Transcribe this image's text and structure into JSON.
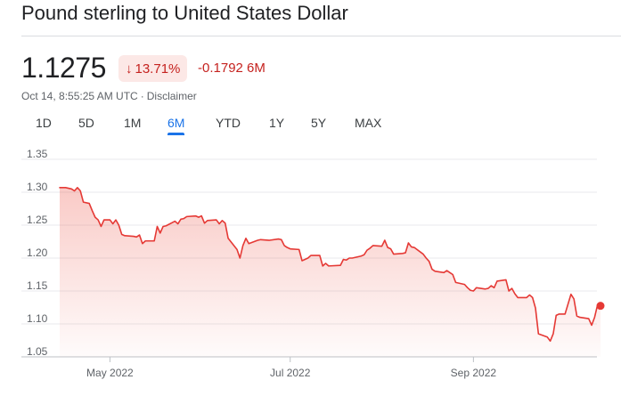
{
  "header": {
    "title": "Pound sterling to United States Dollar"
  },
  "quote": {
    "price": "1.1275",
    "percent_change": "13.71%",
    "percent_direction_icon": "arrow-down-icon",
    "abs_change": "-0.1792 6M",
    "timestamp": "Oct 14, 8:55:25 AM UTC",
    "separator": "·",
    "disclaimer": "Disclaimer"
  },
  "tabs": [
    {
      "label": "1D",
      "active": false
    },
    {
      "label": "5D",
      "active": false
    },
    {
      "label": "1M",
      "active": false
    },
    {
      "label": "6M",
      "active": true
    },
    {
      "label": "YTD",
      "active": false
    },
    {
      "label": "1Y",
      "active": false
    },
    {
      "label": "5Y",
      "active": false
    },
    {
      "label": "MAX",
      "active": false
    }
  ],
  "colors": {
    "line": "#e53935",
    "fill": "#ea4335",
    "accent": "#1a73e8",
    "negative": "#c5221f",
    "gridline": "#e8eaed"
  },
  "chart_data": {
    "type": "area",
    "ylim": [
      1.05,
      1.35
    ],
    "yticks": [
      "1.35",
      "1.30",
      "1.25",
      "1.20",
      "1.15",
      "1.10",
      "1.05"
    ],
    "xticks": [
      {
        "label": "May 2022",
        "date": "2022-05-01"
      },
      {
        "label": "Jul 2022",
        "date": "2022-07-01"
      },
      {
        "label": "Sep 2022",
        "date": "2022-09-01"
      }
    ],
    "grid": true,
    "series": [
      {
        "points": [
          [
            "2022-04-14",
            1.307
          ],
          [
            "2022-04-16",
            1.307
          ],
          [
            "2022-04-18",
            1.305
          ],
          [
            "2022-04-19",
            1.302
          ],
          [
            "2022-04-20",
            1.307
          ],
          [
            "2022-04-21",
            1.302
          ],
          [
            "2022-04-22",
            1.285
          ],
          [
            "2022-04-24",
            1.283
          ],
          [
            "2022-04-25",
            1.272
          ],
          [
            "2022-04-26",
            1.262
          ],
          [
            "2022-04-27",
            1.258
          ],
          [
            "2022-04-28",
            1.248
          ],
          [
            "2022-04-29",
            1.258
          ],
          [
            "2022-05-01",
            1.258
          ],
          [
            "2022-05-02",
            1.252
          ],
          [
            "2022-05-03",
            1.258
          ],
          [
            "2022-05-04",
            1.25
          ],
          [
            "2022-05-05",
            1.236
          ],
          [
            "2022-05-06",
            1.234
          ],
          [
            "2022-05-09",
            1.233
          ],
          [
            "2022-05-10",
            1.232
          ],
          [
            "2022-05-11",
            1.235
          ],
          [
            "2022-05-12",
            1.222
          ],
          [
            "2022-05-13",
            1.226
          ],
          [
            "2022-05-16",
            1.226
          ],
          [
            "2022-05-17",
            1.248
          ],
          [
            "2022-05-18",
            1.238
          ],
          [
            "2022-05-19",
            1.248
          ],
          [
            "2022-05-20",
            1.249
          ],
          [
            "2022-05-23",
            1.256
          ],
          [
            "2022-05-24",
            1.252
          ],
          [
            "2022-05-25",
            1.259
          ],
          [
            "2022-05-26",
            1.26
          ],
          [
            "2022-05-27",
            1.263
          ],
          [
            "2022-05-30",
            1.264
          ],
          [
            "2022-05-31",
            1.262
          ],
          [
            "2022-06-01",
            1.264
          ],
          [
            "2022-06-02",
            1.253
          ],
          [
            "2022-06-03",
            1.257
          ],
          [
            "2022-06-06",
            1.258
          ],
          [
            "2022-06-07",
            1.252
          ],
          [
            "2022-06-08",
            1.257
          ],
          [
            "2022-06-09",
            1.253
          ],
          [
            "2022-06-10",
            1.23
          ],
          [
            "2022-06-13",
            1.213
          ],
          [
            "2022-06-14",
            1.2
          ],
          [
            "2022-06-15",
            1.219
          ],
          [
            "2022-06-16",
            1.23
          ],
          [
            "2022-06-17",
            1.222
          ],
          [
            "2022-06-20",
            1.227
          ],
          [
            "2022-06-21",
            1.228
          ],
          [
            "2022-06-24",
            1.227
          ],
          [
            "2022-06-27",
            1.229
          ],
          [
            "2022-06-28",
            1.228
          ],
          [
            "2022-06-29",
            1.219
          ],
          [
            "2022-06-30",
            1.216
          ],
          [
            "2022-07-01",
            1.214
          ],
          [
            "2022-07-04",
            1.213
          ],
          [
            "2022-07-05",
            1.196
          ],
          [
            "2022-07-07",
            1.2
          ],
          [
            "2022-07-08",
            1.204
          ],
          [
            "2022-07-11",
            1.204
          ],
          [
            "2022-07-12",
            1.188
          ],
          [
            "2022-07-13",
            1.192
          ],
          [
            "2022-07-14",
            1.188
          ],
          [
            "2022-07-18",
            1.189
          ],
          [
            "2022-07-19",
            1.198
          ],
          [
            "2022-07-20",
            1.197
          ],
          [
            "2022-07-21",
            1.2
          ],
          [
            "2022-07-22",
            1.2
          ],
          [
            "2022-07-25",
            1.203
          ],
          [
            "2022-07-26",
            1.205
          ],
          [
            "2022-07-27",
            1.212
          ],
          [
            "2022-07-28",
            1.215
          ],
          [
            "2022-07-29",
            1.219
          ],
          [
            "2022-08-01",
            1.218
          ],
          [
            "2022-08-02",
            1.227
          ],
          [
            "2022-08-03",
            1.216
          ],
          [
            "2022-08-04",
            1.214
          ],
          [
            "2022-08-05",
            1.206
          ],
          [
            "2022-08-08",
            1.207
          ],
          [
            "2022-08-09",
            1.208
          ],
          [
            "2022-08-10",
            1.223
          ],
          [
            "2022-08-11",
            1.217
          ],
          [
            "2022-08-12",
            1.216
          ],
          [
            "2022-08-15",
            1.206
          ],
          [
            "2022-08-16",
            1.2
          ],
          [
            "2022-08-17",
            1.195
          ],
          [
            "2022-08-18",
            1.183
          ],
          [
            "2022-08-19",
            1.18
          ],
          [
            "2022-08-22",
            1.178
          ],
          [
            "2022-08-23",
            1.181
          ],
          [
            "2022-08-24",
            1.178
          ],
          [
            "2022-08-25",
            1.175
          ],
          [
            "2022-08-26",
            1.163
          ],
          [
            "2022-08-29",
            1.16
          ],
          [
            "2022-08-30",
            1.155
          ],
          [
            "2022-08-31",
            1.151
          ],
          [
            "2022-09-01",
            1.15
          ],
          [
            "2022-09-02",
            1.155
          ],
          [
            "2022-09-05",
            1.153
          ],
          [
            "2022-09-06",
            1.154
          ],
          [
            "2022-09-07",
            1.158
          ],
          [
            "2022-09-08",
            1.155
          ],
          [
            "2022-09-09",
            1.165
          ],
          [
            "2022-09-12",
            1.167
          ],
          [
            "2022-09-13",
            1.15
          ],
          [
            "2022-09-14",
            1.154
          ],
          [
            "2022-09-15",
            1.146
          ],
          [
            "2022-09-16",
            1.14
          ],
          [
            "2022-09-19",
            1.14
          ],
          [
            "2022-09-20",
            1.144
          ],
          [
            "2022-09-21",
            1.14
          ],
          [
            "2022-09-22",
            1.124
          ],
          [
            "2022-09-23",
            1.085
          ],
          [
            "2022-09-26",
            1.08
          ],
          [
            "2022-09-27",
            1.074
          ],
          [
            "2022-09-28",
            1.085
          ],
          [
            "2022-09-29",
            1.113
          ],
          [
            "2022-09-30",
            1.115
          ],
          [
            "2022-10-02",
            1.115
          ],
          [
            "2022-10-03",
            1.13
          ],
          [
            "2022-10-04",
            1.145
          ],
          [
            "2022-10-05",
            1.138
          ],
          [
            "2022-10-06",
            1.112
          ],
          [
            "2022-10-07",
            1.11
          ],
          [
            "2022-10-10",
            1.108
          ],
          [
            "2022-10-11",
            1.098
          ],
          [
            "2022-10-12",
            1.11
          ],
          [
            "2022-10-13",
            1.129
          ],
          [
            "2022-10-14",
            1.1275
          ]
        ]
      }
    ]
  }
}
